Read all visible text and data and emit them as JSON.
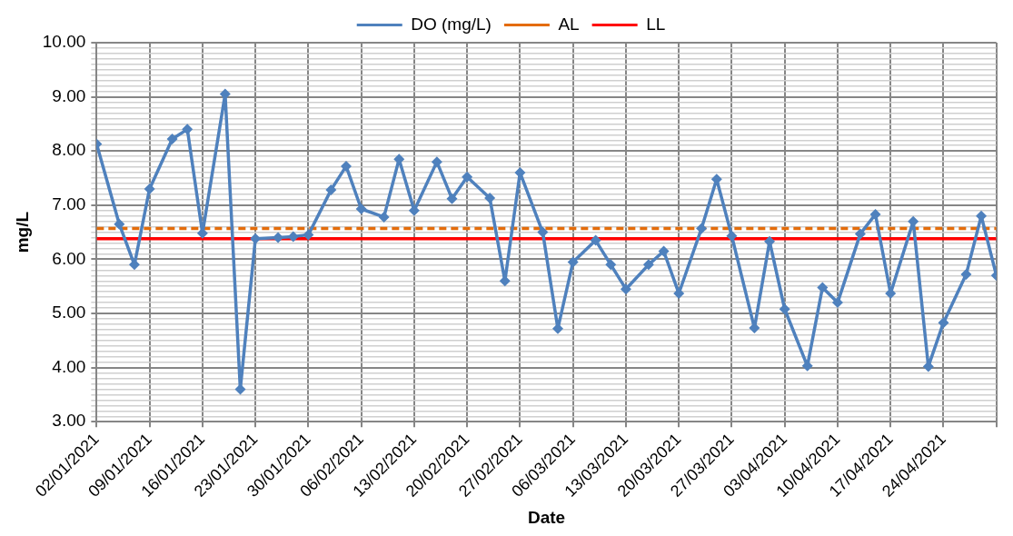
{
  "chart_data": {
    "type": "line",
    "xlabel": "Date",
    "ylabel": "mg/L",
    "legend": "top",
    "grid": true,
    "x": [
      "2021-01-02",
      "2021-01-05",
      "2021-01-07",
      "2021-01-09",
      "2021-01-12",
      "2021-01-14",
      "2021-01-16",
      "2021-01-19",
      "2021-01-21",
      "2021-01-23",
      "2021-01-26",
      "2021-01-28",
      "2021-01-30",
      "2021-02-02",
      "2021-02-04",
      "2021-02-06",
      "2021-02-09",
      "2021-02-11",
      "2021-02-13",
      "2021-02-16",
      "2021-02-18",
      "2021-02-20",
      "2021-02-23",
      "2021-02-25",
      "2021-02-27",
      "2021-03-02",
      "2021-03-04",
      "2021-03-06",
      "2021-03-09",
      "2021-03-11",
      "2021-03-13",
      "2021-03-16",
      "2021-03-18",
      "2021-03-20",
      "2021-03-23",
      "2021-03-25",
      "2021-03-27",
      "2021-03-30",
      "2021-04-01",
      "2021-04-03",
      "2021-04-06",
      "2021-04-08",
      "2021-04-10",
      "2021-04-13",
      "2021-04-15",
      "2021-04-17",
      "2021-04-20",
      "2021-04-22",
      "2021-04-24",
      "2021-04-27",
      "2021-04-29",
      "2021-05-01"
    ],
    "series": [
      {
        "name": "DO (mg/L)",
        "color": "#4f81bd",
        "marker": "diamond",
        "line_style": "solid",
        "values": [
          8.13,
          6.65,
          5.9,
          7.3,
          8.22,
          8.4,
          6.48,
          9.05,
          3.6,
          6.38,
          6.4,
          6.42,
          6.45,
          7.28,
          7.72,
          6.93,
          6.78,
          7.85,
          6.9,
          7.8,
          7.12,
          7.52,
          7.13,
          5.6,
          7.6,
          6.5,
          4.72,
          5.95,
          6.35,
          5.9,
          5.45,
          5.9,
          6.15,
          5.37,
          6.57,
          7.48,
          6.43,
          4.73,
          6.33,
          5.08,
          4.03,
          5.48,
          5.2,
          6.47,
          6.83,
          5.37,
          6.7,
          4.02,
          4.83,
          5.72,
          6.8,
          5.7
        ]
      },
      {
        "name": "AL",
        "color": "#e46c0a",
        "marker": "none",
        "line_style": "dashed",
        "x": [
          "2021-01-02",
          "2021-05-01"
        ],
        "values": [
          6.57,
          6.57
        ]
      },
      {
        "name": "LL",
        "color": "#ff0000",
        "marker": "none",
        "line_style": "solid",
        "x": [
          "2021-01-02",
          "2021-05-01"
        ],
        "values": [
          6.38,
          6.38
        ]
      }
    ],
    "xlim": [
      "2021-01-02",
      "2021-05-01"
    ],
    "xticks": [
      {
        "value": "2021-01-02",
        "label": "02/01/2021"
      },
      {
        "value": "2021-01-09",
        "label": "09/01/2021"
      },
      {
        "value": "2021-01-16",
        "label": "16/01/2021"
      },
      {
        "value": "2021-01-23",
        "label": "23/01/2021"
      },
      {
        "value": "2021-01-30",
        "label": "30/01/2021"
      },
      {
        "value": "2021-02-06",
        "label": "06/02/2021"
      },
      {
        "value": "2021-02-13",
        "label": "13/02/2021"
      },
      {
        "value": "2021-02-20",
        "label": "20/02/2021"
      },
      {
        "value": "2021-02-27",
        "label": "27/02/2021"
      },
      {
        "value": "2021-03-06",
        "label": "06/03/2021"
      },
      {
        "value": "2021-03-13",
        "label": "13/03/2021"
      },
      {
        "value": "2021-03-20",
        "label": "20/03/2021"
      },
      {
        "value": "2021-03-27",
        "label": "27/03/2021"
      },
      {
        "value": "2021-04-03",
        "label": "03/04/2021"
      },
      {
        "value": "2021-04-10",
        "label": "10/04/2021"
      },
      {
        "value": "2021-04-17",
        "label": "17/04/2021"
      },
      {
        "value": "2021-04-24",
        "label": "24/04/2021"
      },
      {
        "value": "2021-05-01",
        "label": null
      }
    ],
    "ylim": [
      3,
      10
    ],
    "yticks": [
      {
        "value": 3,
        "label": "3.00"
      },
      {
        "value": 3.1,
        "label": null
      },
      {
        "value": 3.2,
        "label": null
      },
      {
        "value": 3.3,
        "label": null
      },
      {
        "value": 3.4,
        "label": null
      },
      {
        "value": 3.5,
        "label": null
      },
      {
        "value": 3.6,
        "label": null
      },
      {
        "value": 3.7,
        "label": null
      },
      {
        "value": 3.8,
        "label": null
      },
      {
        "value": 3.9,
        "label": null
      },
      {
        "value": 4,
        "label": "4.00"
      },
      {
        "value": 4.1,
        "label": null
      },
      {
        "value": 4.2,
        "label": null
      },
      {
        "value": 4.3,
        "label": null
      },
      {
        "value": 4.4,
        "label": null
      },
      {
        "value": 4.5,
        "label": null
      },
      {
        "value": 4.6,
        "label": null
      },
      {
        "value": 4.7,
        "label": null
      },
      {
        "value": 4.8,
        "label": null
      },
      {
        "value": 4.9,
        "label": null
      },
      {
        "value": 5,
        "label": "5.00"
      },
      {
        "value": 5.1,
        "label": null
      },
      {
        "value": 5.2,
        "label": null
      },
      {
        "value": 5.3,
        "label": null
      },
      {
        "value": 5.4,
        "label": null
      },
      {
        "value": 5.5,
        "label": null
      },
      {
        "value": 5.6,
        "label": null
      },
      {
        "value": 5.7,
        "label": null
      },
      {
        "value": 5.8,
        "label": null
      },
      {
        "value": 5.9,
        "label": null
      },
      {
        "value": 6,
        "label": "6.00"
      },
      {
        "value": 6.1,
        "label": null
      },
      {
        "value": 6.2,
        "label": null
      },
      {
        "value": 6.3,
        "label": null
      },
      {
        "value": 6.4,
        "label": null
      },
      {
        "value": 6.5,
        "label": null
      },
      {
        "value": 6.6,
        "label": null
      },
      {
        "value": 6.7,
        "label": null
      },
      {
        "value": 6.8,
        "label": null
      },
      {
        "value": 6.9,
        "label": null
      },
      {
        "value": 7,
        "label": "7.00"
      },
      {
        "value": 7.1,
        "label": null
      },
      {
        "value": 7.2,
        "label": null
      },
      {
        "value": 7.3,
        "label": null
      },
      {
        "value": 7.4,
        "label": null
      },
      {
        "value": 7.5,
        "label": null
      },
      {
        "value": 7.6,
        "label": null
      },
      {
        "value": 7.7,
        "label": null
      },
      {
        "value": 7.8,
        "label": null
      },
      {
        "value": 7.9,
        "label": null
      },
      {
        "value": 8,
        "label": "8.00"
      },
      {
        "value": 8.1,
        "label": null
      },
      {
        "value": 8.2,
        "label": null
      },
      {
        "value": 8.3,
        "label": null
      },
      {
        "value": 8.4,
        "label": null
      },
      {
        "value": 8.5,
        "label": null
      },
      {
        "value": 8.6,
        "label": null
      },
      {
        "value": 8.7,
        "label": null
      },
      {
        "value": 8.8,
        "label": null
      },
      {
        "value": 8.9,
        "label": null
      },
      {
        "value": 9,
        "label": "9.00"
      },
      {
        "value": 9.1,
        "label": null
      },
      {
        "value": 9.2,
        "label": null
      },
      {
        "value": 9.3,
        "label": null
      },
      {
        "value": 9.4,
        "label": null
      },
      {
        "value": 9.5,
        "label": null
      },
      {
        "value": 9.6,
        "label": null
      },
      {
        "value": 9.7,
        "label": null
      },
      {
        "value": 9.8,
        "label": null
      },
      {
        "value": 9.9,
        "label": null
      },
      {
        "value": 10,
        "label": "10.00"
      }
    ]
  }
}
